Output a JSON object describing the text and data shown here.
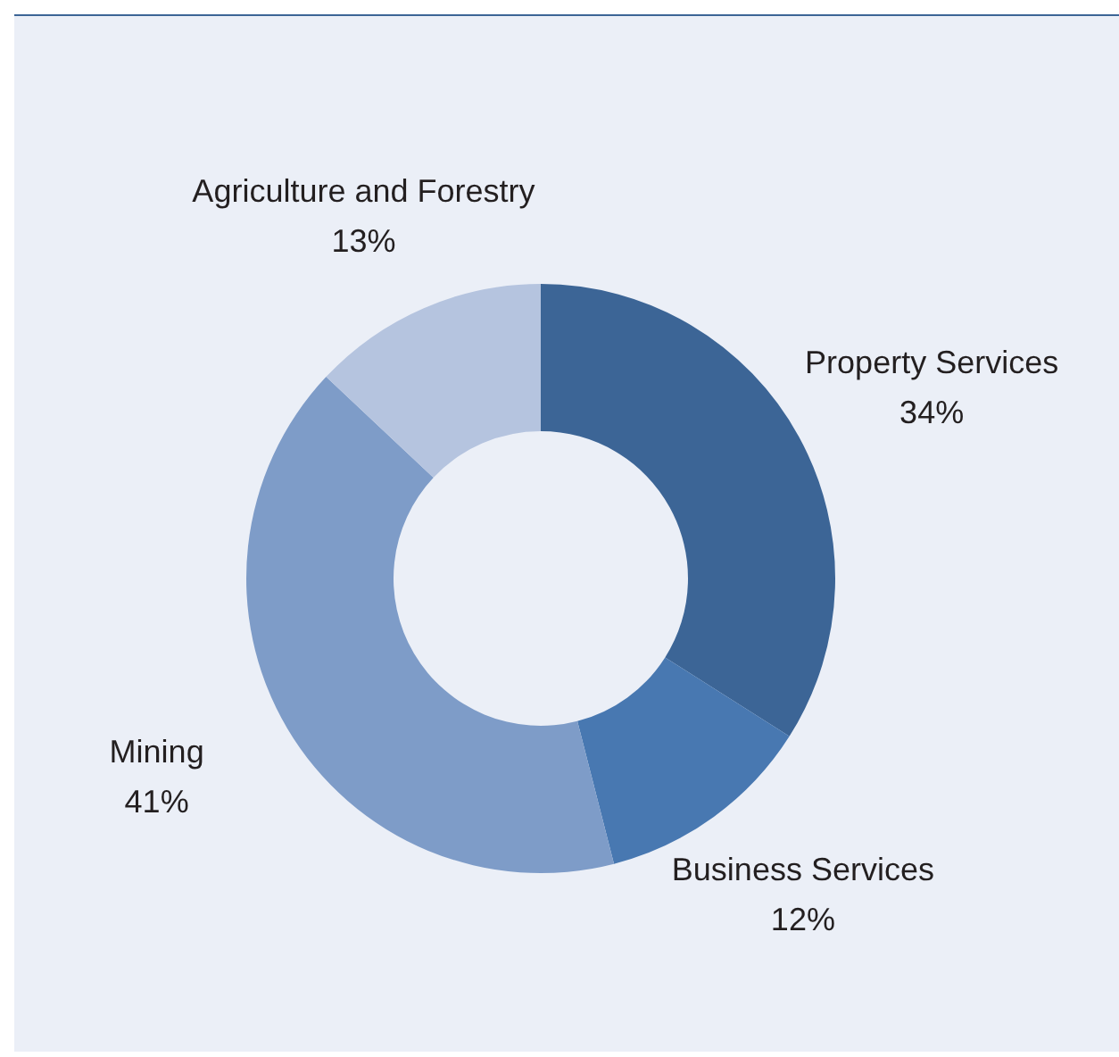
{
  "chart_data": {
    "type": "donut",
    "categories": [
      "Property Services",
      "Business Services",
      "Mining",
      "Agriculture and Forestry"
    ],
    "values": [
      34,
      12,
      41,
      13
    ],
    "colors": [
      "#3c6596",
      "#4878b1",
      "#7e9cc8",
      "#b5c4df"
    ],
    "value_labels": [
      "34%",
      "12%",
      "41%",
      "13%"
    ],
    "legend": false
  }
}
